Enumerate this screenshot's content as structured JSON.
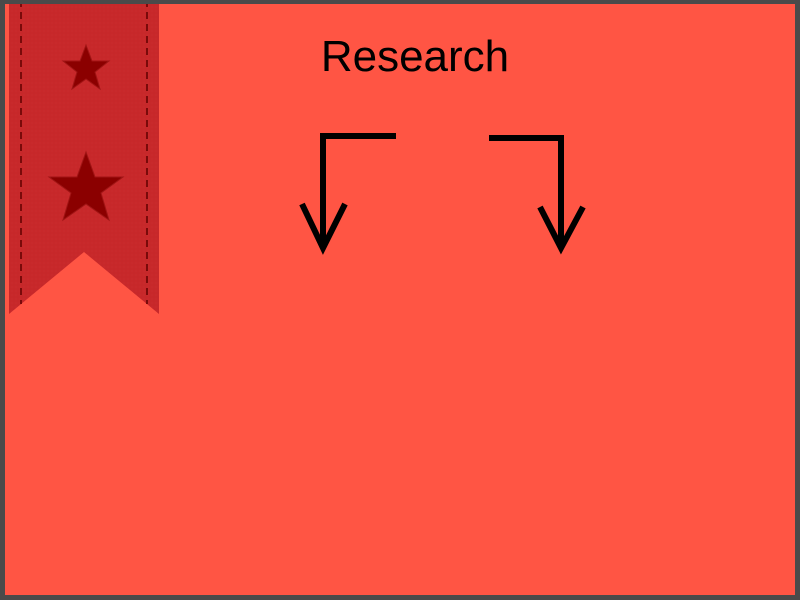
{
  "slide": {
    "title": "Research",
    "background_color": "#ff5544",
    "frame_color": "#4a4a4a"
  },
  "ribbon": {
    "color": "#c8282a",
    "stitch_color": "#7a0a0a",
    "star_color": "#8b0000",
    "icons": [
      "star-icon",
      "star-icon"
    ]
  },
  "arrows": {
    "color": "#000000",
    "items": [
      {
        "name": "left-branch-arrow",
        "direction": "down-left"
      },
      {
        "name": "right-branch-arrow",
        "direction": "down-right"
      }
    ]
  }
}
